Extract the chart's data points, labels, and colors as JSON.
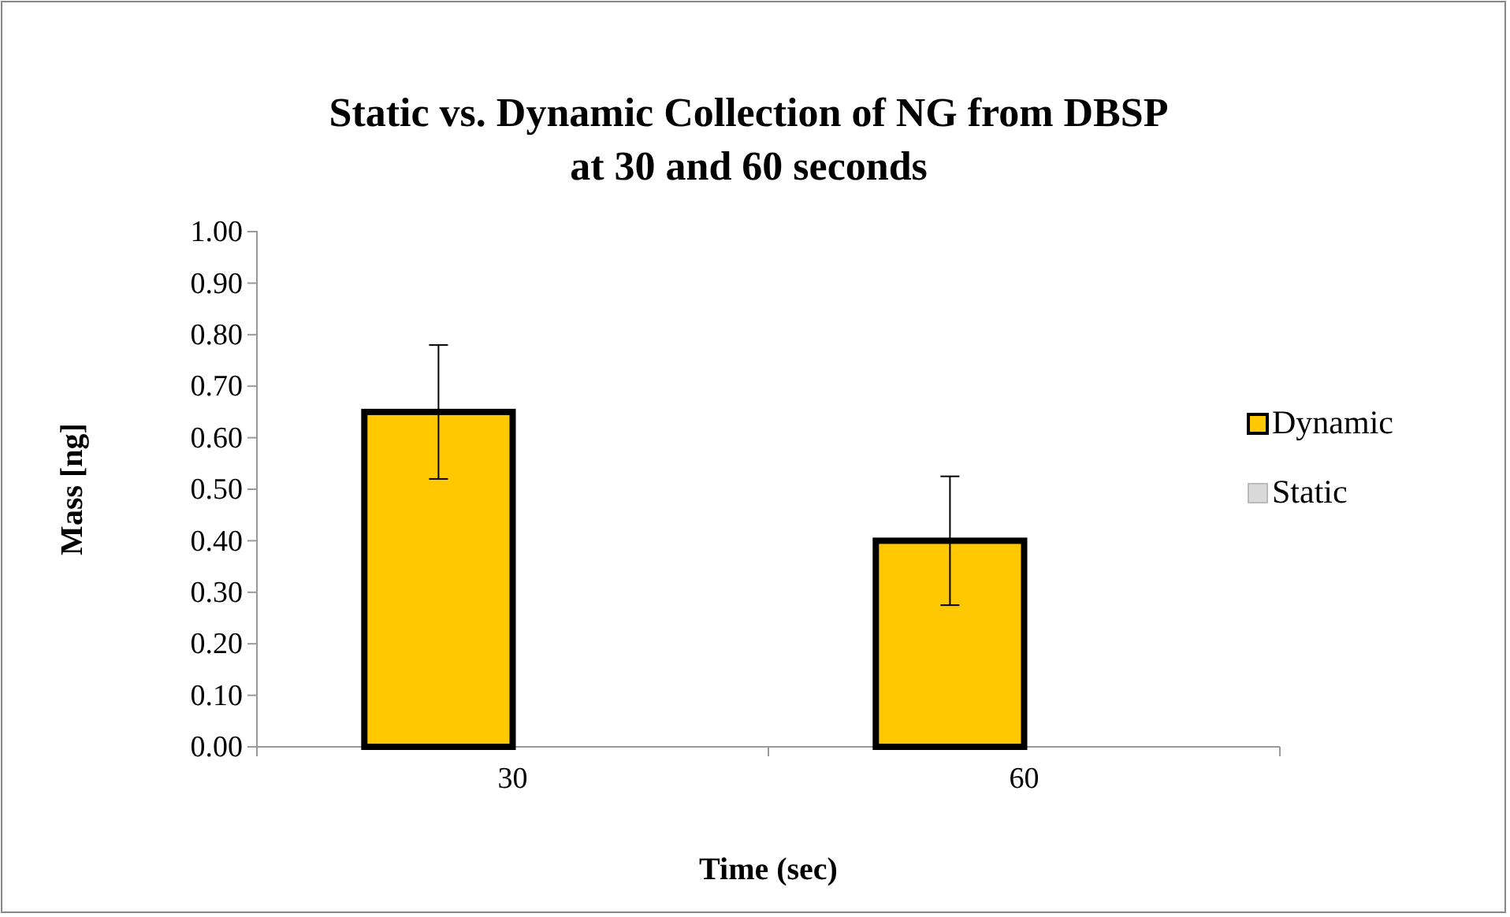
{
  "chart_data": {
    "type": "bar",
    "title": "Static vs. Dynamic Collection of NG from DBSP\nat 30 and 60 seconds",
    "xlabel": "Time (sec)",
    "ylabel": "Mass [ng]",
    "categories": [
      "30",
      "60"
    ],
    "series": [
      {
        "name": "Dynamic",
        "color": "#ffc800",
        "values": [
          0.65,
          0.4
        ],
        "errors": [
          0.13,
          0.125
        ]
      },
      {
        "name": "Static",
        "color": "#d9d9d9",
        "values": [
          0,
          0
        ]
      }
    ],
    "ylim": [
      0,
      1
    ],
    "yticks": [
      {
        "value": 0,
        "label": "0.00"
      },
      {
        "value": 0.1,
        "label": "0.10"
      },
      {
        "value": 0.2,
        "label": "0.20"
      },
      {
        "value": 0.3,
        "label": "0.30"
      },
      {
        "value": 0.4,
        "label": "0.40"
      },
      {
        "value": 0.5,
        "label": "0.50"
      },
      {
        "value": 0.6,
        "label": "0.60"
      },
      {
        "value": 0.7,
        "label": "0.70"
      },
      {
        "value": 0.8,
        "label": "0.80"
      },
      {
        "value": 0.9,
        "label": "0.90"
      },
      {
        "value": 1,
        "label": "1.00"
      }
    ],
    "grid": false,
    "legend": "right"
  }
}
